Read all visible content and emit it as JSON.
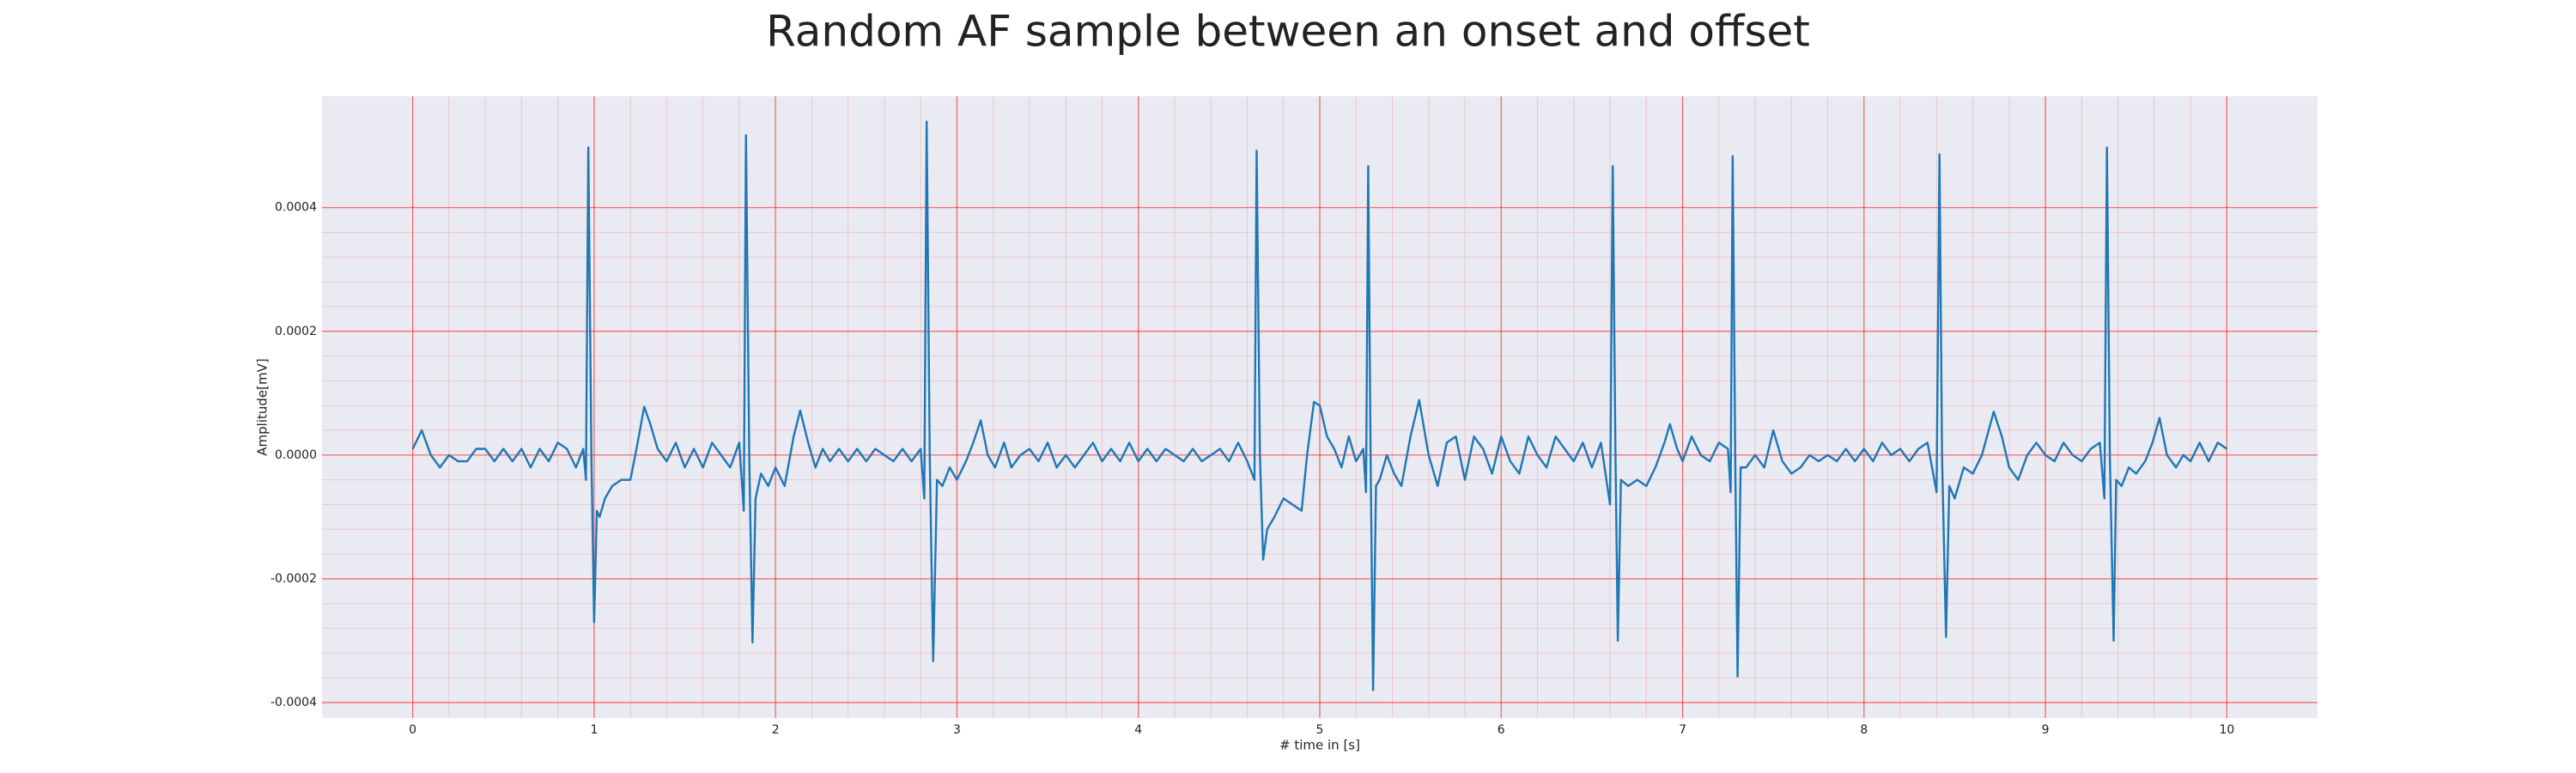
{
  "chart_data": {
    "type": "line",
    "title": "Random AF sample between an onset and offset",
    "xlabel": "# time in [s]",
    "ylabel": "Amplitude[mV]",
    "x": [
      0,
      0.05,
      0.1,
      0.15,
      0.2,
      0.25,
      0.3,
      0.35,
      0.4,
      0.45,
      0.5,
      0.55,
      0.6,
      0.65,
      0.7,
      0.75,
      0.8,
      0.85,
      0.9,
      0.94,
      0.955,
      0.968,
      0.985,
      1.0,
      1.015,
      1.03,
      1.06,
      1.1,
      1.15,
      1.2,
      1.24,
      1.276,
      1.31,
      1.35,
      1.4,
      1.45,
      1.5,
      1.55,
      1.6,
      1.65,
      1.7,
      1.75,
      1.8,
      1.825,
      1.837,
      1.855,
      1.873,
      1.89,
      1.92,
      1.96,
      2.0,
      2.05,
      2.1,
      2.136,
      2.18,
      2.22,
      2.26,
      2.3,
      2.35,
      2.4,
      2.45,
      2.5,
      2.55,
      2.6,
      2.65,
      2.7,
      2.75,
      2.8,
      2.82,
      2.833,
      2.85,
      2.869,
      2.89,
      2.92,
      2.96,
      3.0,
      3.05,
      3.09,
      3.131,
      3.17,
      3.21,
      3.26,
      3.3,
      3.35,
      3.4,
      3.45,
      3.5,
      3.55,
      3.6,
      3.65,
      3.7,
      3.75,
      3.8,
      3.85,
      3.9,
      3.95,
      4.0,
      4.05,
      4.1,
      4.15,
      4.2,
      4.25,
      4.3,
      4.35,
      4.4,
      4.45,
      4.5,
      4.55,
      4.6,
      4.64,
      4.652,
      4.67,
      4.688,
      4.71,
      4.75,
      4.8,
      4.85,
      4.9,
      4.93,
      4.968,
      5.0,
      5.04,
      5.08,
      5.12,
      5.16,
      5.2,
      5.24,
      5.255,
      5.267,
      5.28,
      5.294,
      5.31,
      5.33,
      5.37,
      5.41,
      5.45,
      5.5,
      5.548,
      5.6,
      5.65,
      5.7,
      5.75,
      5.8,
      5.85,
      5.9,
      5.95,
      6.0,
      6.05,
      6.1,
      6.15,
      6.2,
      6.25,
      6.3,
      6.35,
      6.4,
      6.45,
      6.5,
      6.55,
      6.6,
      6.615,
      6.63,
      6.643,
      6.66,
      6.7,
      6.75,
      6.8,
      6.85,
      6.9,
      6.93,
      6.97,
      7.0,
      7.05,
      7.1,
      7.15,
      7.2,
      7.25,
      7.265,
      7.276,
      7.29,
      7.303,
      7.32,
      7.35,
      7.4,
      7.45,
      7.5,
      7.55,
      7.6,
      7.65,
      7.7,
      7.75,
      7.8,
      7.85,
      7.9,
      7.95,
      8.0,
      8.05,
      8.1,
      8.15,
      8.2,
      8.25,
      8.3,
      8.35,
      8.4,
      8.416,
      8.43,
      8.452,
      8.47,
      8.5,
      8.55,
      8.6,
      8.65,
      8.715,
      8.76,
      8.8,
      8.85,
      8.9,
      8.95,
      9.0,
      9.05,
      9.1,
      9.15,
      9.2,
      9.25,
      9.3,
      9.325,
      9.339,
      9.355,
      9.376,
      9.39,
      9.42,
      9.46,
      9.5,
      9.55,
      9.59,
      9.629,
      9.67,
      9.72,
      9.76,
      9.8,
      9.85,
      9.9,
      9.95,
      10.0
    ],
    "series": [
      {
        "color": "#1f77b4",
        "values": [
          1e-05,
          4e-05,
          0.0,
          -2e-05,
          0.0,
          -1e-05,
          -1e-05,
          1e-05,
          1e-05,
          -1e-05,
          1e-05,
          -1e-05,
          1e-05,
          -2e-05,
          1e-05,
          -1e-05,
          2e-05,
          1e-05,
          -2e-05,
          1e-05,
          -4e-05,
          0.000497,
          0.0,
          -0.00027,
          -9e-05,
          -0.0001,
          -7e-05,
          -5e-05,
          -4e-05,
          -4e-05,
          2e-05,
          7.8e-05,
          5e-05,
          1e-05,
          -1e-05,
          2e-05,
          -2e-05,
          1e-05,
          -2e-05,
          2e-05,
          0.0,
          -2e-05,
          2e-05,
          -9e-05,
          0.000517,
          0.0,
          -0.000303,
          -7e-05,
          -3e-05,
          -5e-05,
          -2e-05,
          -5e-05,
          3e-05,
          7.2e-05,
          2e-05,
          -2e-05,
          1e-05,
          -1e-05,
          1e-05,
          -1e-05,
          1e-05,
          -1e-05,
          1e-05,
          0.0,
          -1e-05,
          1e-05,
          -1e-05,
          1e-05,
          -7e-05,
          0.000539,
          0.0,
          -0.000333,
          -4e-05,
          -5e-05,
          -2e-05,
          -4e-05,
          -1e-05,
          2e-05,
          5.6e-05,
          0.0,
          -2e-05,
          2e-05,
          -2e-05,
          0.0,
          1e-05,
          -1e-05,
          2e-05,
          -2e-05,
          0.0,
          -2e-05,
          0.0,
          2e-05,
          -1e-05,
          1e-05,
          -1e-05,
          2e-05,
          -1e-05,
          1e-05,
          -1e-05,
          1e-05,
          0.0,
          -1e-05,
          1e-05,
          -1e-05,
          0.0,
          1e-05,
          -1e-05,
          2e-05,
          -1e-05,
          -4e-05,
          0.000492,
          0.0,
          -0.000169,
          -0.00012,
          -0.0001,
          -7e-05,
          -8e-05,
          -9e-05,
          0.0,
          8.6e-05,
          8e-05,
          3e-05,
          1e-05,
          -2e-05,
          3e-05,
          -1e-05,
          1e-05,
          -6e-05,
          0.000467,
          0.0,
          -0.00038,
          -5e-05,
          -4e-05,
          0.0,
          -3e-05,
          -5e-05,
          3e-05,
          8.9e-05,
          0.0,
          -5e-05,
          2e-05,
          3e-05,
          -4e-05,
          3e-05,
          1e-05,
          -3e-05,
          3e-05,
          -1e-05,
          -3e-05,
          3e-05,
          0.0,
          -2e-05,
          3e-05,
          1e-05,
          -1e-05,
          2e-05,
          -2e-05,
          2e-05,
          -8e-05,
          0.000467,
          0.0,
          -0.0003,
          -4e-05,
          -5e-05,
          -4e-05,
          -5e-05,
          -2e-05,
          2e-05,
          5e-05,
          1e-05,
          -1e-05,
          3e-05,
          0.0,
          -1e-05,
          2e-05,
          1e-05,
          -6e-05,
          0.000483,
          0.0,
          -0.000358,
          -2e-05,
          -2e-05,
          0.0,
          -2e-05,
          4e-05,
          -1e-05,
          -3e-05,
          -2e-05,
          0.0,
          -1e-05,
          0.0,
          -1e-05,
          1e-05,
          -1e-05,
          1e-05,
          -1e-05,
          2e-05,
          0.0,
          1e-05,
          -1e-05,
          1e-05,
          2e-05,
          -6e-05,
          0.000486,
          0.0,
          -0.000294,
          -5e-05,
          -7e-05,
          -2e-05,
          -3e-05,
          0.0,
          7e-05,
          3e-05,
          -2e-05,
          -4e-05,
          0.0,
          2e-05,
          0.0,
          -1e-05,
          2e-05,
          0.0,
          -1e-05,
          1e-05,
          2e-05,
          -7e-05,
          0.000497,
          0.0,
          -0.0003,
          -4e-05,
          -5e-05,
          -2e-05,
          -3e-05,
          -1e-05,
          2e-05,
          6e-05,
          0.0,
          -2e-05,
          0.0,
          -1e-05,
          2e-05,
          -1e-05,
          2e-05,
          1e-05
        ]
      }
    ],
    "xlim": [
      -0.5,
      10.5
    ],
    "ylim": [
      -0.000425,
      0.00058
    ],
    "xticks": [
      0,
      1,
      2,
      3,
      4,
      5,
      6,
      7,
      8,
      9,
      10
    ],
    "yticks": [
      -0.0004,
      -0.0002,
      {
        "value": 0,
        "label": "0.0000"
      },
      0.0002,
      0.0004
    ],
    "grid": true,
    "grid_color": "#ff0000",
    "minor_grid": true,
    "background": "#eaeaf2"
  }
}
